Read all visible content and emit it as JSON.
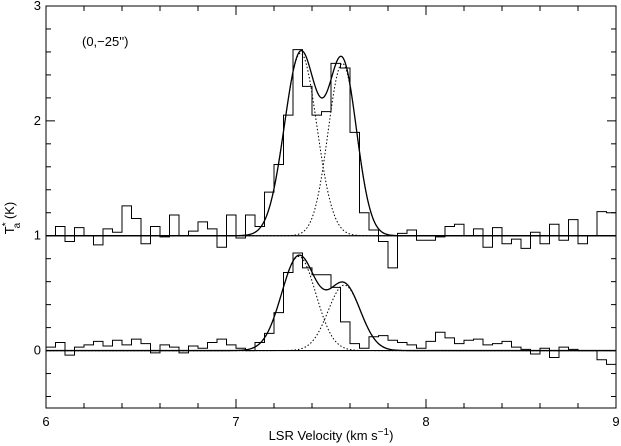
{
  "chart_data": {
    "type": "line",
    "title": "",
    "xlabel_main": "LSR Velocity (km s",
    "xlabel_sup": "−1",
    "xlabel_end": ")",
    "ylabel_main": "T",
    "ylabel_sup": "*",
    "ylabel_sub": "a",
    "ylabel_unit": " (K)",
    "annotation": "(0,−25'')",
    "xlim": [
      6,
      9
    ],
    "ylim": [
      -0.5,
      3
    ],
    "xticks": [
      "6",
      "7",
      "8",
      "9"
    ],
    "yticks": [
      "0",
      "1",
      "2",
      "3"
    ],
    "grid": false,
    "baselines": [
      0,
      1
    ],
    "series": [
      {
        "style": "histogram",
        "offset": 1,
        "x": [
          6.0,
          6.05,
          6.1,
          6.15,
          6.2,
          6.25,
          6.3,
          6.35,
          6.4,
          6.45,
          6.5,
          6.55,
          6.6,
          6.65,
          6.7,
          6.75,
          6.8,
          6.85,
          6.9,
          6.95,
          7.0,
          7.05,
          7.1,
          7.15,
          7.2,
          7.25,
          7.3,
          7.35,
          7.4,
          7.45,
          7.5,
          7.55,
          7.6,
          7.65,
          7.7,
          7.75,
          7.8,
          7.85,
          7.9,
          7.95,
          8.0,
          8.05,
          8.1,
          8.15,
          8.2,
          8.25,
          8.3,
          8.35,
          8.4,
          8.45,
          8.5,
          8.55,
          8.6,
          8.65,
          8.7,
          8.75,
          8.8,
          8.85,
          8.9,
          8.95
        ],
        "y": [
          1.0,
          1.08,
          0.95,
          1.07,
          1.0,
          0.92,
          1.06,
          1.03,
          1.26,
          1.15,
          0.93,
          1.08,
          0.99,
          1.18,
          1.0,
          1.04,
          1.12,
          1.06,
          0.9,
          1.18,
          0.98,
          1.18,
          1.08,
          1.38,
          1.62,
          2.05,
          2.62,
          2.3,
          2.05,
          2.08,
          2.5,
          2.46,
          1.9,
          1.2,
          1.05,
          0.95,
          0.72,
          1.02,
          1.05,
          0.96,
          0.96,
          0.99,
          1.08,
          1.1,
          1.0,
          1.06,
          0.9,
          1.07,
          0.93,
          0.97,
          0.89,
          1.03,
          0.93,
          1.1,
          0.96,
          1.14,
          0.93,
          1.0,
          1.21,
          1.2
        ]
      },
      {
        "style": "histogram",
        "offset": 0,
        "x": [
          6.0,
          6.05,
          6.1,
          6.15,
          6.2,
          6.25,
          6.3,
          6.35,
          6.4,
          6.45,
          6.5,
          6.55,
          6.6,
          6.65,
          6.7,
          6.75,
          6.8,
          6.85,
          6.9,
          6.95,
          7.0,
          7.05,
          7.1,
          7.15,
          7.2,
          7.25,
          7.3,
          7.35,
          7.4,
          7.45,
          7.5,
          7.55,
          7.6,
          7.65,
          7.7,
          7.75,
          7.8,
          7.85,
          7.9,
          7.95,
          8.0,
          8.05,
          8.1,
          8.15,
          8.2,
          8.25,
          8.3,
          8.35,
          8.4,
          8.45,
          8.5,
          8.55,
          8.6,
          8.65,
          8.7,
          8.75,
          8.8,
          8.85,
          8.9,
          8.95
        ],
        "y": [
          0.03,
          0.07,
          -0.04,
          0.03,
          0.05,
          0.08,
          0.04,
          0.09,
          0.05,
          0.1,
          0.06,
          -0.02,
          0.05,
          0.03,
          -0.02,
          0.04,
          0.02,
          0.07,
          0.1,
          0.05,
          0.02,
          0.0,
          0.07,
          0.15,
          0.33,
          0.68,
          0.85,
          0.72,
          0.66,
          0.66,
          0.55,
          0.25,
          0.06,
          0.02,
          0.12,
          0.13,
          0.09,
          0.07,
          0.05,
          0.02,
          0.08,
          0.16,
          0.11,
          0.06,
          0.09,
          0.1,
          0.05,
          0.06,
          0.08,
          0.03,
          0.01,
          -0.03,
          0.02,
          -0.06,
          0.03,
          0.01,
          0.0,
          0.0,
          -0.08,
          -0.12
        ]
      },
      {
        "style": "solid-fit",
        "offset": 1,
        "components": [
          {
            "amplitude": 1.59,
            "center": 7.34,
            "sigma": 0.085
          },
          {
            "amplitude": 1.5,
            "center": 7.56,
            "sigma": 0.075
          }
        ]
      },
      {
        "style": "dotted-component",
        "offset": 1,
        "components": [
          {
            "amplitude": 1.59,
            "center": 7.34,
            "sigma": 0.085
          }
        ]
      },
      {
        "style": "dotted-component",
        "offset": 1,
        "components": [
          {
            "amplitude": 1.5,
            "center": 7.56,
            "sigma": 0.075
          }
        ]
      },
      {
        "style": "solid-fit",
        "offset": 0,
        "components": [
          {
            "amplitude": 0.82,
            "center": 7.33,
            "sigma": 0.09
          },
          {
            "amplitude": 0.57,
            "center": 7.57,
            "sigma": 0.085
          }
        ]
      },
      {
        "style": "dotted-component",
        "offset": 0,
        "components": [
          {
            "amplitude": 0.82,
            "center": 7.33,
            "sigma": 0.09
          }
        ]
      },
      {
        "style": "dotted-component",
        "offset": 0,
        "components": [
          {
            "amplitude": 0.57,
            "center": 7.57,
            "sigma": 0.085
          }
        ]
      }
    ]
  }
}
